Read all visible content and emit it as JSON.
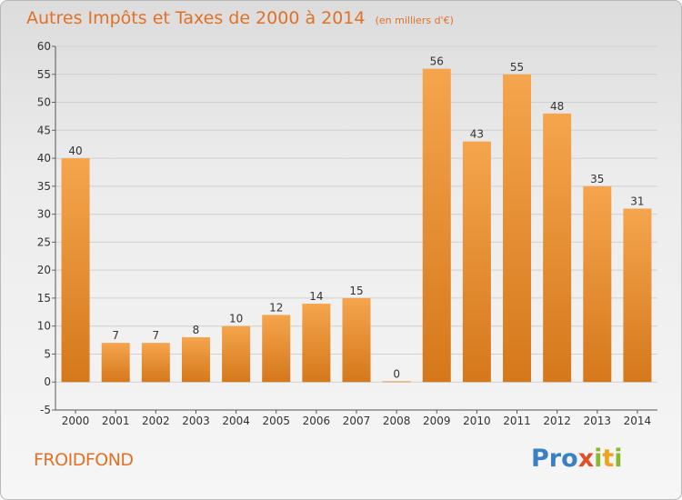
{
  "header": {
    "title": "Autres Impôts et Taxes de 2000 à 2014",
    "subtitle": "(en milliers d'€)"
  },
  "footer": {
    "town": "FROIDFOND",
    "logo_text": "Proxiti",
    "logo_letters": [
      {
        "ch": "P",
        "color": "#3b7fc4"
      },
      {
        "ch": "r",
        "color": "#3b7fc4"
      },
      {
        "ch": "o",
        "color": "#3b7fc4"
      },
      {
        "ch": "x",
        "color": "#e24e2a"
      },
      {
        "ch": "i",
        "color": "#8ab832"
      },
      {
        "ch": "t",
        "color": "#f0a21e"
      },
      {
        "ch": "i",
        "color": "#8ab832"
      }
    ]
  },
  "colors": {
    "accent": "#e07128",
    "bar_light": "#f5a54d",
    "bar_dark": "#d5781b",
    "grid": "#d0d0d0"
  },
  "chart_data": {
    "type": "bar",
    "categories": [
      "2000",
      "2001",
      "2002",
      "2003",
      "2004",
      "2005",
      "2006",
      "2007",
      "2008",
      "2009",
      "2010",
      "2011",
      "2012",
      "2013",
      "2014"
    ],
    "values": [
      40,
      7,
      7,
      8,
      10,
      12,
      14,
      15,
      0,
      56,
      43,
      55,
      48,
      35,
      31
    ],
    "title": "Autres Impôts et Taxes de 2000 à 2014",
    "subtitle": "(en milliers d'€)",
    "ylim": [
      -5,
      60
    ],
    "yticks": [
      -5,
      0,
      5,
      10,
      15,
      20,
      25,
      30,
      35,
      40,
      45,
      50,
      55,
      60
    ],
    "grid": true,
    "data_labels": true
  }
}
